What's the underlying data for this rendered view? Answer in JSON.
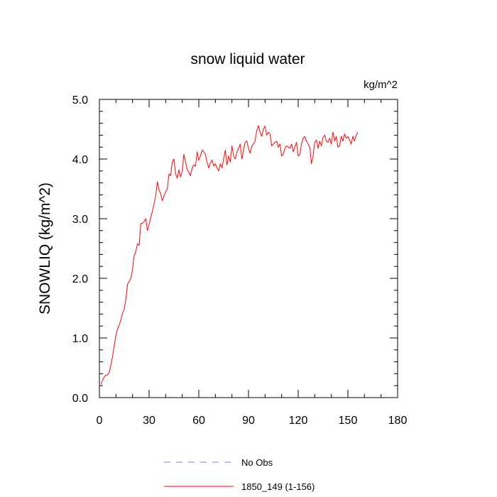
{
  "chart_data": {
    "type": "line",
    "title": "snow liquid water",
    "units_label": "kg/m^2",
    "xlabel": "",
    "ylabel": "SNOWLIQ  (kg/m^2)",
    "xlim": [
      0,
      180
    ],
    "ylim": [
      0,
      5
    ],
    "x_ticks": [
      0,
      30,
      60,
      90,
      120,
      150,
      180
    ],
    "x_tick_labels": [
      "0",
      "30",
      "60",
      "90",
      "120",
      "150",
      "180"
    ],
    "y_ticks": [
      0,
      1,
      2,
      3,
      4,
      5
    ],
    "y_tick_labels": [
      "0.0",
      "1.0",
      "2.0",
      "3.0",
      "4.0",
      "5.0"
    ],
    "x_minor_step": 10,
    "y_minor_step": 0.2,
    "grid": false,
    "legend_position": "bottom-center",
    "legend": [
      {
        "name": "No Obs",
        "color": "#7f7fff",
        "dash": "dashed"
      },
      {
        "name": "1850_149 (1-156)",
        "color": "#ff0000",
        "dash": "solid"
      }
    ],
    "series": [
      {
        "name": "1850_149 (1-156)",
        "color": "#ff0000",
        "x_start": 1,
        "values": [
          0.22,
          0.3,
          0.35,
          0.38,
          0.38,
          0.43,
          0.55,
          0.7,
          0.88,
          1.05,
          1.15,
          1.22,
          1.3,
          1.42,
          1.48,
          1.66,
          1.9,
          1.95,
          2.0,
          2.15,
          2.38,
          2.45,
          2.58,
          2.55,
          2.92,
          2.92,
          2.95,
          3.0,
          2.8,
          2.9,
          3.02,
          3.12,
          3.25,
          3.38,
          3.62,
          3.48,
          3.42,
          3.3,
          3.38,
          3.45,
          3.5,
          3.75,
          3.72,
          3.95,
          4.0,
          3.75,
          3.68,
          3.82,
          3.7,
          3.8,
          4.08,
          3.95,
          3.82,
          3.78,
          3.72,
          3.85,
          3.9,
          3.88,
          4.12,
          3.98,
          4.05,
          4.15,
          4.12,
          4.08,
          3.95,
          3.85,
          3.93,
          3.98,
          3.88,
          3.92,
          3.85,
          3.8,
          3.92,
          3.85,
          4.0,
          4.15,
          3.9,
          4.05,
          3.95,
          4.22,
          4.05,
          4.0,
          4.12,
          4.18,
          4.25,
          4.0,
          4.15,
          4.28,
          4.3,
          4.18,
          4.1,
          4.22,
          4.25,
          4.3,
          4.48,
          4.56,
          4.45,
          4.38,
          4.5,
          4.55,
          4.4,
          4.45,
          4.42,
          4.22,
          4.25,
          4.28,
          4.3,
          4.2,
          4.25,
          4.05,
          4.08,
          4.18,
          4.22,
          4.2,
          4.18,
          4.25,
          4.12,
          4.2,
          4.28,
          4.05,
          4.08,
          4.25,
          4.35,
          4.38,
          4.3,
          4.25,
          4.2,
          3.92,
          4.05,
          4.28,
          4.32,
          4.18,
          4.3,
          4.22,
          4.36,
          4.4,
          4.3,
          4.28,
          4.35,
          4.25,
          4.45,
          4.3,
          4.38,
          4.2,
          4.22,
          4.38,
          4.3,
          4.42,
          4.35,
          4.38,
          4.32,
          4.25,
          4.38,
          4.3,
          4.4,
          4.45
        ]
      }
    ]
  }
}
